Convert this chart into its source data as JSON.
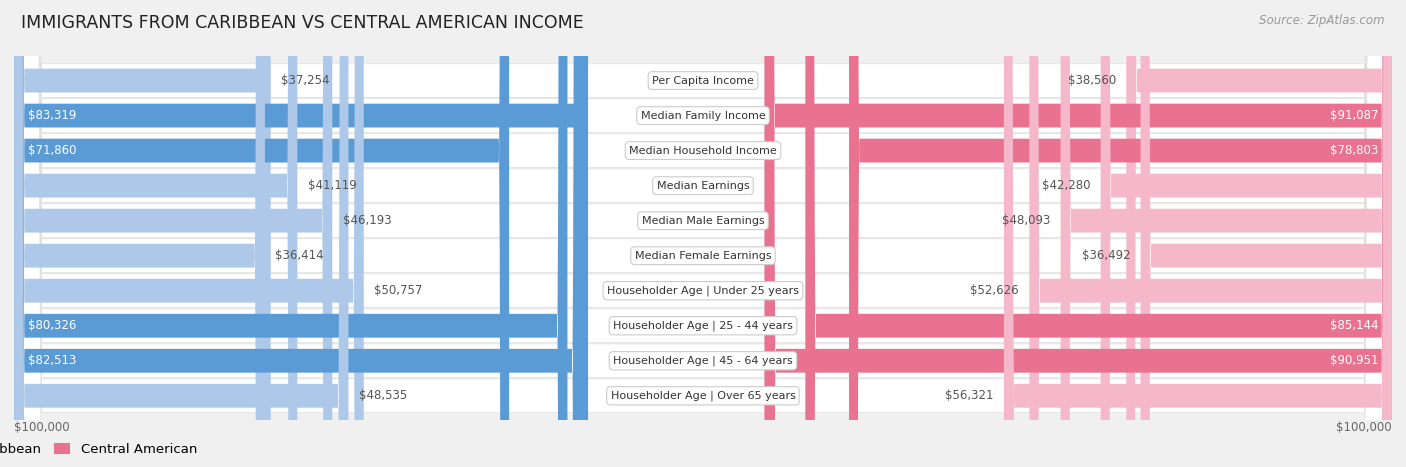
{
  "title": "IMMIGRANTS FROM CARIBBEAN VS CENTRAL AMERICAN INCOME",
  "source": "Source: ZipAtlas.com",
  "categories": [
    "Per Capita Income",
    "Median Family Income",
    "Median Household Income",
    "Median Earnings",
    "Median Male Earnings",
    "Median Female Earnings",
    "Householder Age | Under 25 years",
    "Householder Age | 25 - 44 years",
    "Householder Age | 45 - 64 years",
    "Householder Age | Over 65 years"
  ],
  "caribbean_values": [
    37254,
    83319,
    71860,
    41119,
    46193,
    36414,
    50757,
    80326,
    82513,
    48535
  ],
  "central_american_values": [
    38560,
    91087,
    78803,
    42280,
    48093,
    36492,
    52626,
    85144,
    90951,
    56321
  ],
  "max_value": 100000,
  "carib_light": "#adc8e8",
  "carib_dark": "#5b9bd5",
  "ca_light": "#f5b8cb",
  "ca_dark": "#e8728f",
  "bg_color": "#f0f0f0",
  "row_bg": "#ffffff",
  "label_bg": "#ffffff",
  "title_fontsize": 12.5,
  "source_fontsize": 8.5,
  "legend_fontsize": 9.5,
  "value_fontsize": 8.5,
  "cat_fontsize": 8.0,
  "large_threshold": 60000
}
